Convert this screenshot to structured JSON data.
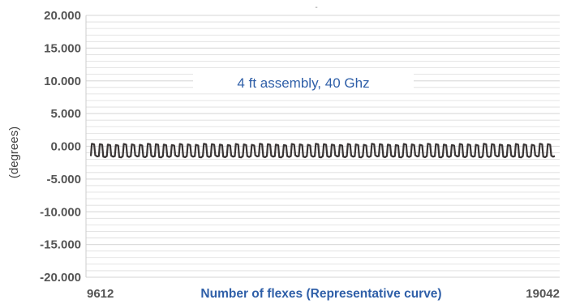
{
  "chart_data": {
    "type": "line",
    "title": "-",
    "annotation": "4 ft assembly, 40 Ghz",
    "xlabel": "Number of flexes (Representative curve)",
    "ylabel": "(degrees)",
    "x_tick_labels": [
      "9612",
      "19042"
    ],
    "xlim": [
      9612,
      19042
    ],
    "ylim": [
      -20,
      20
    ],
    "y_ticks": [
      20,
      15,
      10,
      5,
      0,
      -5,
      -10,
      -15,
      -20
    ],
    "y_tick_labels": [
      "20.000",
      "15.000",
      "10.000",
      "5.000",
      "0.000",
      "-5.000",
      "-10.000",
      "-15.000",
      "-20.000"
    ],
    "grid": true,
    "legend": "none",
    "series": [
      {
        "color": "#3a3535",
        "pattern": {
          "baseline": -1.5,
          "pulse_high": 0.3,
          "cycles": 58
        }
      }
    ]
  },
  "colors": {
    "gridline": "#dddddd",
    "axis": "#cccccc",
    "annotation_box": "#ffffff",
    "series": "#3a3535"
  }
}
